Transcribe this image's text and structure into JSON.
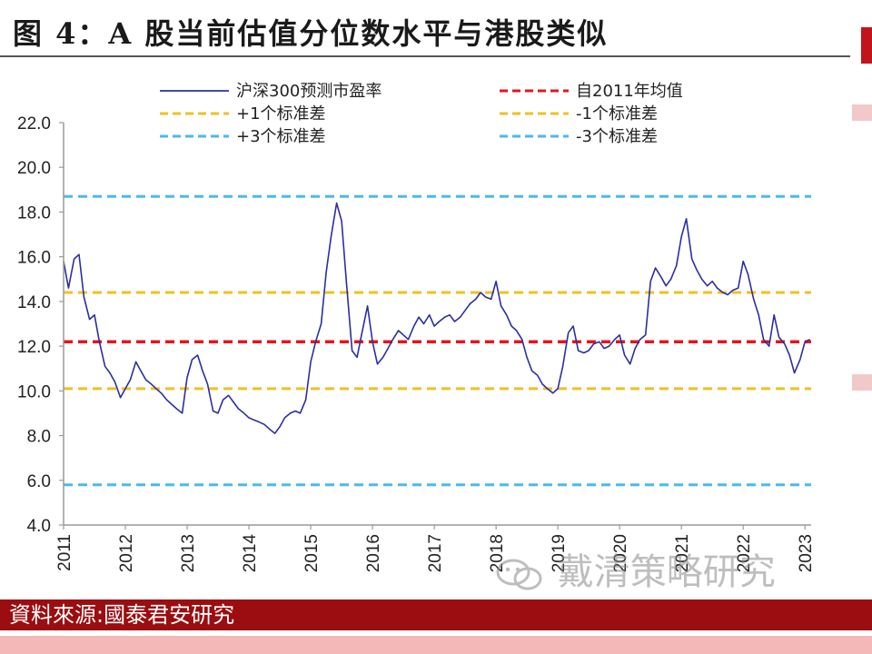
{
  "title": "图 4：A 股当前估值分位数水平与港股类似",
  "source": "資料來源:國泰君安研究",
  "watermark": "戴清策略研究",
  "colors": {
    "pe_line": "#2b2fa0",
    "mean_line": "#e8141c",
    "sd1_line": "#f0c020",
    "sd3_line": "#4cb8f0",
    "source_bar": "#9b0d10"
  },
  "chart_data": {
    "type": "line",
    "title": "",
    "xlabel": "",
    "ylabel": "",
    "ylim": [
      4.0,
      22.0
    ],
    "xlim": [
      2011.0,
      2023.1
    ],
    "yticks": [
      "4.0",
      "6.0",
      "8.0",
      "10.0",
      "12.0",
      "14.0",
      "16.0",
      "18.0",
      "20.0",
      "22.0"
    ],
    "xticks": [
      "2011",
      "2012",
      "2013",
      "2014",
      "2015",
      "2016",
      "2017",
      "2018",
      "2019",
      "2020",
      "2021",
      "2022",
      "2023"
    ],
    "grid": false,
    "legend_position": "top",
    "legend": [
      {
        "name": "沪深300预测市盈率",
        "style": "solid",
        "color": "#2b2fa0"
      },
      {
        "name": "自2011年均值",
        "style": "dashed",
        "color": "#e8141c"
      },
      {
        "name": "+1个标准差",
        "style": "dashed",
        "color": "#f0c020"
      },
      {
        "name": "-1个标准差",
        "style": "dashed",
        "color": "#f0c020"
      },
      {
        "name": "+3个标准差",
        "style": "dashed",
        "color": "#4cb8f0"
      },
      {
        "name": "-3个标准差",
        "style": "dashed",
        "color": "#4cb8f0"
      }
    ],
    "reference_lines": [
      {
        "name": "自2011年均值",
        "value": 12.2
      },
      {
        "name": "+1个标准差",
        "value": 14.4
      },
      {
        "name": "-1个标准差",
        "value": 10.1
      },
      {
        "name": "+3个标准差",
        "value": 18.7
      },
      {
        "name": "-3个标准差",
        "value": 5.8
      }
    ],
    "series": [
      {
        "name": "沪深300预测市盈率",
        "x": [
          2011.0,
          2011.08,
          2011.17,
          2011.25,
          2011.33,
          2011.42,
          2011.5,
          2011.58,
          2011.67,
          2011.75,
          2011.83,
          2011.92,
          2012.0,
          2012.08,
          2012.17,
          2012.25,
          2012.33,
          2012.42,
          2012.5,
          2012.58,
          2012.67,
          2012.75,
          2012.83,
          2012.92,
          2013.0,
          2013.08,
          2013.17,
          2013.25,
          2013.33,
          2013.42,
          2013.5,
          2013.58,
          2013.67,
          2013.75,
          2013.83,
          2013.92,
          2014.0,
          2014.08,
          2014.17,
          2014.25,
          2014.33,
          2014.42,
          2014.5,
          2014.58,
          2014.67,
          2014.75,
          2014.83,
          2014.92,
          2015.0,
          2015.08,
          2015.17,
          2015.25,
          2015.33,
          2015.42,
          2015.5,
          2015.58,
          2015.67,
          2015.75,
          2015.83,
          2015.92,
          2016.0,
          2016.08,
          2016.17,
          2016.25,
          2016.33,
          2016.42,
          2016.5,
          2016.58,
          2016.67,
          2016.75,
          2016.83,
          2016.92,
          2017.0,
          2017.08,
          2017.17,
          2017.25,
          2017.33,
          2017.42,
          2017.5,
          2017.58,
          2017.67,
          2017.75,
          2017.83,
          2017.92,
          2018.0,
          2018.08,
          2018.17,
          2018.25,
          2018.33,
          2018.42,
          2018.5,
          2018.58,
          2018.67,
          2018.75,
          2018.83,
          2018.92,
          2019.0,
          2019.08,
          2019.17,
          2019.25,
          2019.33,
          2019.42,
          2019.5,
          2019.58,
          2019.67,
          2019.75,
          2019.83,
          2019.92,
          2020.0,
          2020.08,
          2020.17,
          2020.25,
          2020.33,
          2020.42,
          2020.5,
          2020.58,
          2020.67,
          2020.75,
          2020.83,
          2020.92,
          2021.0,
          2021.08,
          2021.17,
          2021.25,
          2021.33,
          2021.42,
          2021.5,
          2021.58,
          2021.67,
          2021.75,
          2021.83,
          2021.92,
          2022.0,
          2022.08,
          2022.17,
          2022.25,
          2022.33,
          2022.42,
          2022.5,
          2022.58,
          2022.67,
          2022.75,
          2022.83,
          2022.92,
          2023.0,
          2023.08
        ],
        "values": [
          15.8,
          14.6,
          15.9,
          16.1,
          14.2,
          13.2,
          13.4,
          12.2,
          11.1,
          10.8,
          10.4,
          9.7,
          10.1,
          10.5,
          11.3,
          10.9,
          10.5,
          10.3,
          10.1,
          9.9,
          9.6,
          9.4,
          9.2,
          9.0,
          10.6,
          11.4,
          11.6,
          10.9,
          10.3,
          9.1,
          9.0,
          9.6,
          9.8,
          9.5,
          9.2,
          9.0,
          8.8,
          8.7,
          8.6,
          8.5,
          8.3,
          8.1,
          8.4,
          8.8,
          9.0,
          9.1,
          9.0,
          9.6,
          11.3,
          12.2,
          13.0,
          15.3,
          16.9,
          18.4,
          17.6,
          14.8,
          11.8,
          11.5,
          12.6,
          13.8,
          12.2,
          11.2,
          11.5,
          11.9,
          12.3,
          12.7,
          12.5,
          12.3,
          12.9,
          13.3,
          13.0,
          13.4,
          12.9,
          13.1,
          13.3,
          13.4,
          13.1,
          13.3,
          13.6,
          13.9,
          14.1,
          14.4,
          14.2,
          14.1,
          14.9,
          13.8,
          13.4,
          12.9,
          12.7,
          12.3,
          11.5,
          10.9,
          10.7,
          10.3,
          10.1,
          9.9,
          10.1,
          11.1,
          12.6,
          12.9,
          11.8,
          11.7,
          11.8,
          12.1,
          12.2,
          11.9,
          12.0,
          12.3,
          12.5,
          11.6,
          11.2,
          11.9,
          12.3,
          12.5,
          14.9,
          15.5,
          15.1,
          14.7,
          15.0,
          15.6,
          16.9,
          17.7,
          15.9,
          15.4,
          15.0,
          14.7,
          14.9,
          14.6,
          14.4,
          14.3,
          14.5,
          14.6,
          15.8,
          15.2,
          14.1,
          13.4,
          12.3,
          12.0,
          13.4,
          12.4,
          12.1,
          11.6,
          10.8,
          11.4,
          12.2,
          12.3
        ]
      }
    ]
  }
}
